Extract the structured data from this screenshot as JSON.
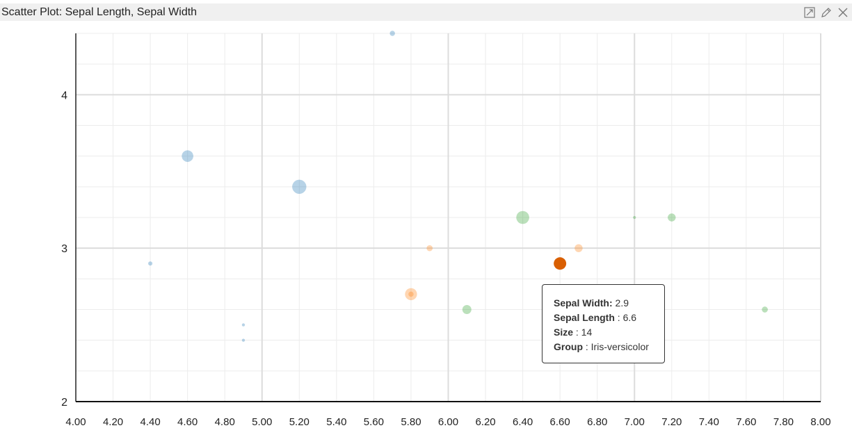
{
  "window": {
    "title": "Scatter Plot: Sepal Length, Sepal Width",
    "icons": [
      "expand-icon",
      "edit-icon",
      "close-icon"
    ]
  },
  "tooltip": {
    "rows": [
      {
        "label": "Sepal Width:",
        "value": " 2.9"
      },
      {
        "label": "Sepal Length",
        "value": " : 6.6"
      },
      {
        "label": "Size",
        "value": " : 14"
      },
      {
        "label": "Group",
        "value": " : Iris-versicolor"
      }
    ]
  },
  "chart_data": {
    "type": "scatter",
    "title": "",
    "xlabel": "",
    "ylabel": "",
    "xlim": [
      4.0,
      8.0
    ],
    "ylim": [
      2,
      4.4
    ],
    "x_ticks": [
      "4.00",
      "4.20",
      "4.40",
      "4.60",
      "4.80",
      "5.00",
      "5.20",
      "5.40",
      "5.60",
      "5.80",
      "6.00",
      "6.20",
      "6.40",
      "6.60",
      "6.80",
      "7.00",
      "7.20",
      "7.40",
      "7.60",
      "7.80",
      "8.00"
    ],
    "y_ticks": [
      "2",
      "3",
      "4"
    ],
    "grid": true,
    "series": [
      {
        "color": "#1f77b4",
        "points": [
          {
            "x": 5.7,
            "y": 4.4,
            "size": 3
          },
          {
            "x": 4.6,
            "y": 3.6,
            "size": 12
          },
          {
            "x": 5.2,
            "y": 3.4,
            "size": 18
          },
          {
            "x": 4.4,
            "y": 2.9,
            "size": 2
          },
          {
            "x": 4.9,
            "y": 2.5,
            "size": 1
          },
          {
            "x": 4.9,
            "y": 2.4,
            "size": 1
          }
        ]
      },
      {
        "color": "#ff7f0e",
        "points": [
          {
            "x": 5.9,
            "y": 3.0,
            "size": 4
          },
          {
            "x": 6.7,
            "y": 3.0,
            "size": 7
          },
          {
            "x": 5.8,
            "y": 2.7,
            "size": 13
          },
          {
            "x": 5.8,
            "y": 2.7,
            "size": 3
          },
          {
            "x": 6.6,
            "y": 2.9,
            "size": 14,
            "highlight": true
          }
        ]
      },
      {
        "color": "#2ca02c",
        "points": [
          {
            "x": 6.4,
            "y": 3.2,
            "size": 15
          },
          {
            "x": 7.2,
            "y": 3.2,
            "size": 7
          },
          {
            "x": 7.0,
            "y": 3.2,
            "size": 1
          },
          {
            "x": 6.1,
            "y": 2.6,
            "size": 9
          },
          {
            "x": 7.7,
            "y": 2.6,
            "size": 4
          }
        ]
      }
    ]
  }
}
